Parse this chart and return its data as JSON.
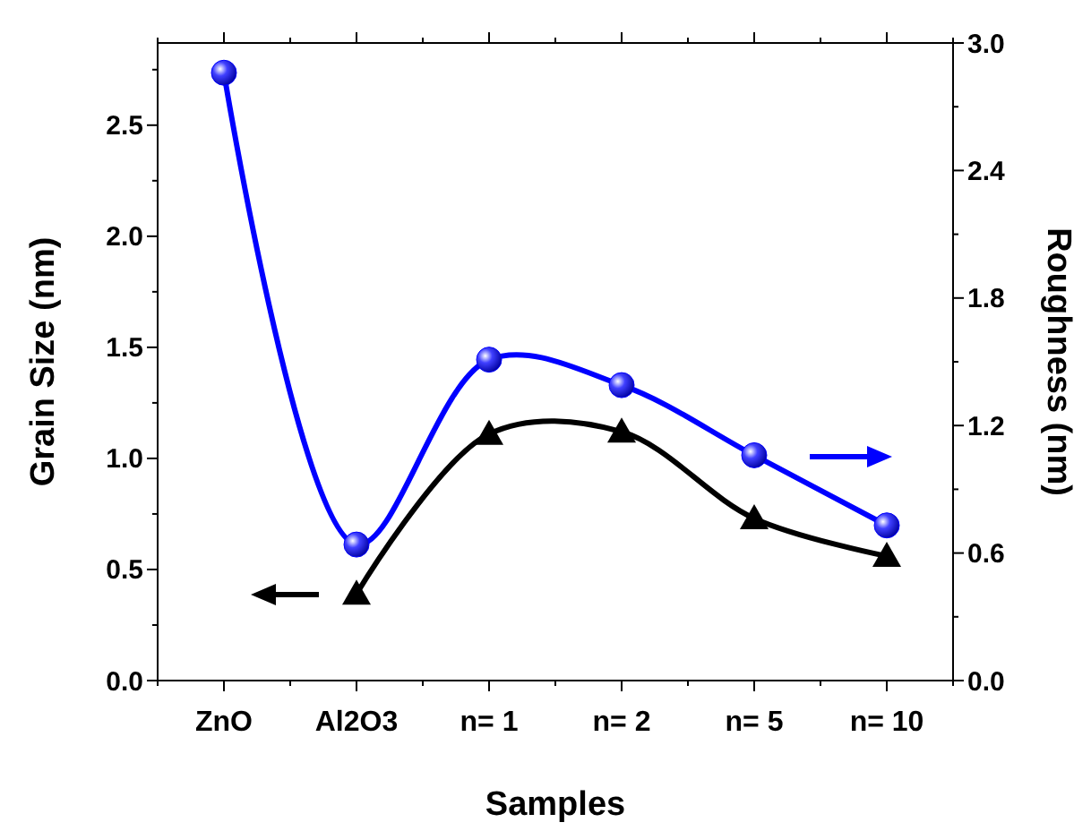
{
  "chart_data": {
    "type": "line",
    "xlabel": "Samples",
    "ylabel": "Grain Size (nm)",
    "y2label": "Roughness (nm)",
    "categories": [
      "ZnO",
      "Al2O3",
      "n= 1",
      "n= 2",
      "n= 5",
      "n= 10"
    ],
    "series": [
      {
        "color": "#000000",
        "marker": "triangle",
        "values": [
          null,
          0.39,
          1.11,
          1.12,
          0.73,
          0.56
        ]
      },
      {
        "color": "#0000ff",
        "marker": "circle",
        "axis": "y2",
        "values": [
          2.86,
          0.64,
          1.51,
          1.39,
          1.06,
          0.73
        ]
      }
    ],
    "ylim": [
      0,
      2.87
    ],
    "yticks": [
      {
        "value": 0,
        "label": "0.0"
      },
      {
        "value": 0.25,
        "label": null
      },
      {
        "value": 0.5,
        "label": "0.5"
      },
      {
        "value": 0.75,
        "label": null
      },
      {
        "value": 1,
        "label": "1.0"
      },
      {
        "value": 1.25,
        "label": null
      },
      {
        "value": 1.5,
        "label": "1.5"
      },
      {
        "value": 1.75,
        "label": null
      },
      {
        "value": 2,
        "label": "2.0"
      },
      {
        "value": 2.25,
        "label": null
      },
      {
        "value": 2.5,
        "label": "2.5"
      },
      {
        "value": 2.75,
        "label": null
      }
    ],
    "y2lim": [
      0,
      3
    ],
    "y2ticks": [
      {
        "value": 0,
        "label": "0.0"
      },
      {
        "value": 0.3,
        "label": null
      },
      {
        "value": 0.6,
        "label": "0.6"
      },
      {
        "value": 0.9,
        "label": null
      },
      {
        "value": 1.2,
        "label": "1.2"
      },
      {
        "value": 1.5,
        "label": null
      },
      {
        "value": 1.8,
        "label": "1.8"
      },
      {
        "value": 2.1,
        "label": null
      },
      {
        "value": 2.4,
        "label": "2.4"
      },
      {
        "value": 2.7,
        "label": null
      },
      {
        "value": 3,
        "label": "3.0"
      }
    ]
  }
}
